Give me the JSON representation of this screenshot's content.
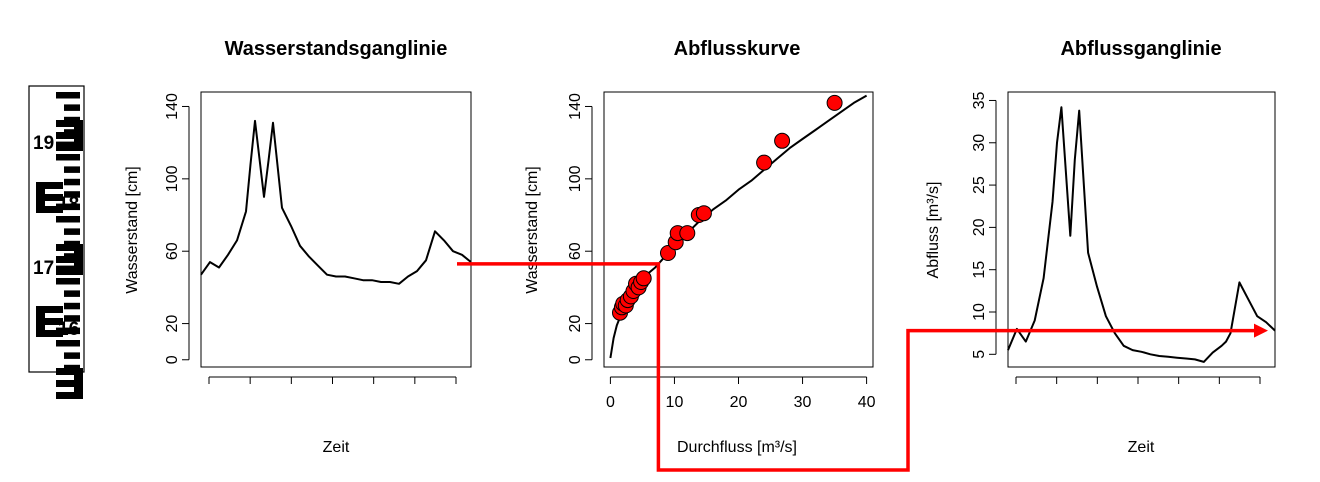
{
  "gauge": {
    "labels": [
      "19",
      "18",
      "17",
      "16"
    ]
  },
  "chart_data": [
    {
      "type": "line",
      "title": "Wasserstandsganglinie",
      "xlabel": "Zeit",
      "ylabel": "Wasserstand [cm]",
      "xlim": [
        0,
        30
      ],
      "ylim": [
        -4,
        148
      ],
      "yticks": [
        0,
        20,
        60,
        100,
        140
      ],
      "x_ticks_unlabeled": 7,
      "series": [
        {
          "color": "#000000",
          "x": [
            0,
            1,
            2,
            3,
            4,
            5,
            5.5,
            6,
            7,
            7.5,
            8,
            9,
            10,
            11,
            12,
            13,
            14,
            15,
            16,
            17,
            18,
            19,
            20,
            21,
            22,
            23,
            24,
            24.5,
            25,
            26,
            27,
            28,
            29,
            30
          ],
          "y": [
            47,
            54,
            51,
            58,
            66,
            82,
            108,
            132,
            90,
            110,
            131,
            84,
            74,
            63,
            57,
            52,
            47,
            46,
            46,
            45,
            44,
            44,
            43,
            43,
            42,
            46,
            49,
            52,
            55,
            71,
            66,
            60,
            58,
            54
          ]
        }
      ]
    },
    {
      "type": "scatter",
      "title": "Abflusskurve",
      "xlabel": "Durchfluss [m³/s]",
      "ylabel": "Wasserstand [cm]",
      "xlim": [
        -1,
        41
      ],
      "ylim": [
        -4,
        148
      ],
      "xticks": [
        0,
        10,
        20,
        30,
        40
      ],
      "yticks": [
        0,
        20,
        60,
        100,
        140
      ],
      "curve": {
        "color": "#000000",
        "x": [
          0,
          0.5,
          1,
          2,
          3,
          4,
          5,
          6,
          7,
          8,
          9,
          10,
          12,
          14,
          16,
          18,
          20,
          22,
          24,
          26,
          28,
          30,
          32,
          34,
          36,
          38,
          40
        ],
        "y": [
          1,
          12,
          19,
          28,
          36,
          42,
          45,
          48,
          51,
          55,
          59,
          63,
          70,
          77,
          83,
          88,
          94,
          99,
          105,
          111,
          117,
          122,
          127,
          132,
          137,
          142,
          146
        ]
      },
      "points": {
        "color": "#ff0000",
        "x": [
          1.5,
          1.8,
          2.0,
          2.4,
          2.7,
          3.2,
          3.6,
          4.0,
          4.4,
          4.8,
          5.2,
          9,
          10.2,
          10.5,
          12,
          13.8,
          14.6,
          24,
          26.8,
          35
        ],
        "y": [
          26,
          29,
          31,
          30,
          33,
          35,
          38,
          42,
          40,
          43,
          45,
          59,
          65,
          70,
          70,
          80,
          81,
          109,
          121,
          142
        ]
      },
      "connector_level": 53,
      "connector_discharge": 7.5
    },
    {
      "type": "line",
      "title": "Abflussganglinie",
      "xlabel": "Zeit",
      "ylabel": "Abfluss [m³/s]",
      "xlim": [
        0,
        30
      ],
      "ylim": [
        3.5,
        36
      ],
      "yticks": [
        5,
        10,
        15,
        20,
        25,
        30,
        35
      ],
      "x_ticks_unlabeled": 7,
      "series": [
        {
          "color": "#000000",
          "x": [
            0,
            1,
            2,
            3,
            4,
            5,
            5.5,
            6,
            7,
            7.5,
            8,
            9,
            10,
            11,
            12,
            13,
            14,
            15,
            16,
            17,
            18,
            19,
            20,
            21,
            22,
            23,
            24,
            24.5,
            25,
            26,
            27,
            28,
            29,
            30
          ],
          "y": [
            5.5,
            8,
            6.5,
            9,
            14,
            23,
            30,
            34.2,
            19,
            28,
            33.8,
            17,
            13,
            9.5,
            7.5,
            6,
            5.5,
            5.3,
            5,
            4.8,
            4.7,
            4.6,
            4.5,
            4.4,
            4.1,
            5.2,
            6,
            6.5,
            7.5,
            13.5,
            11.5,
            9.5,
            8.8,
            7.8
          ]
        }
      ],
      "connector_discharge": 7.8
    }
  ]
}
